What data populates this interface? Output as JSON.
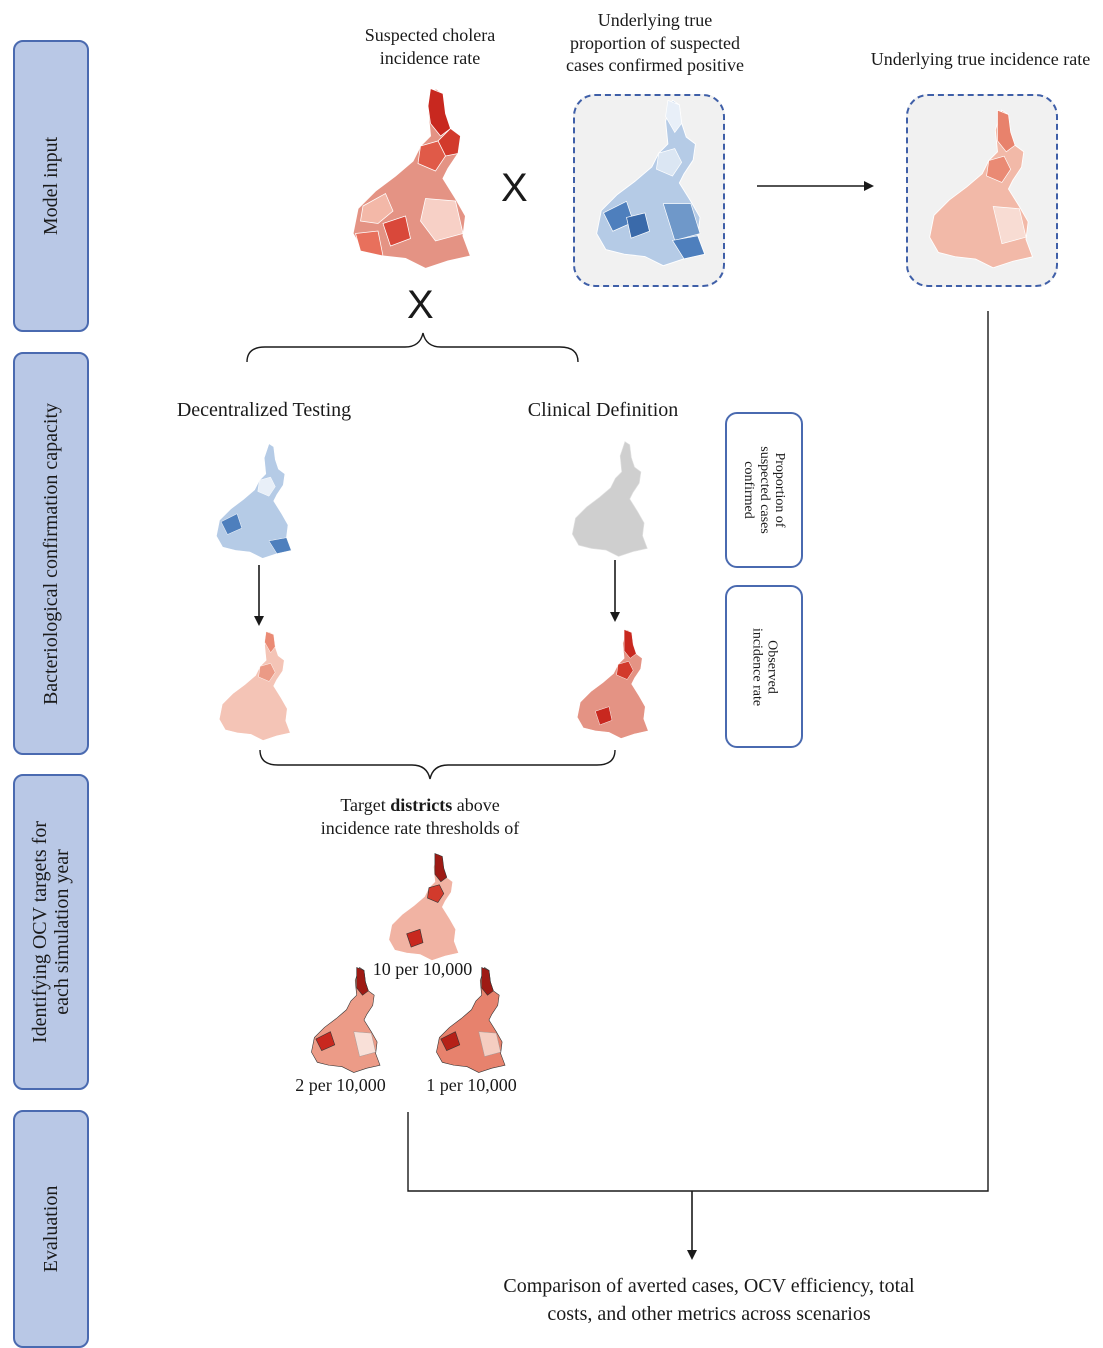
{
  "stages": {
    "model_input": "Model input",
    "confirmation": "Bacteriological confirmation capacity",
    "identifying_line1": "Identifying OCV targets for",
    "identifying_line2": "each simulation year",
    "evaluation": "Evaluation"
  },
  "inputs": {
    "suspected_line1": "Suspected cholera",
    "suspected_line2": "incidence rate",
    "true_prop_line1": "Underlying true",
    "true_prop_line2": "proportion of suspected",
    "true_prop_line3": "cases confirmed positive",
    "true_incidence": "Underlying true incidence rate",
    "multiply_symbol": "X"
  },
  "scenarios": {
    "decentralized": "Decentralized Testing",
    "clinical": "Clinical Definition"
  },
  "legend": {
    "proportion_line1": "Proportion of",
    "proportion_line2": "suspected cases",
    "proportion_line3": "confirmed",
    "observed_line1": "Observed",
    "observed_line2": "incidence rate"
  },
  "targeting": {
    "line1_prefix": "Target ",
    "line1_bold": "districts",
    "line1_suffix": " above",
    "line2": "incidence rate thresholds of",
    "thresholds": [
      "10 per 10,000",
      "2 per 10,000",
      "1 per 10,000"
    ]
  },
  "evaluation": {
    "line1": "Comparison of averted cases, OCV efficiency, total",
    "line2": "costs, and other metrics across scenarios"
  },
  "colors": {
    "stage_fill": "#b9c8e6",
    "stage_border": "#4a6ab0",
    "red_dark": "#c8281f",
    "red_light": "#f6d3ca",
    "blue_dark": "#4e7fbd",
    "blue_light": "#dbe6f3",
    "grey_map": "#cfcfcf"
  }
}
